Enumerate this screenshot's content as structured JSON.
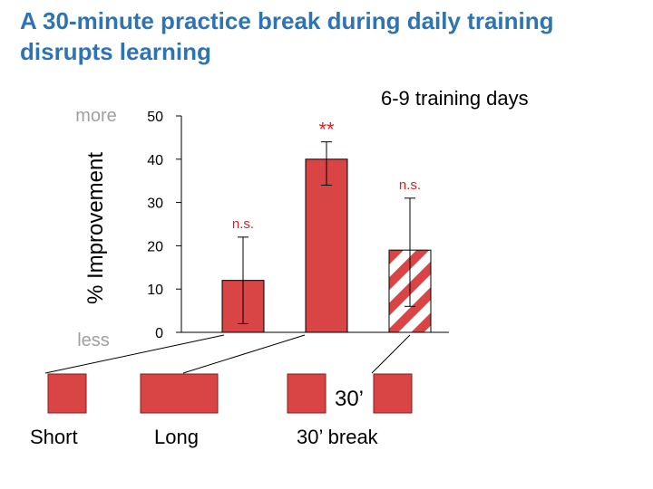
{
  "slide": {
    "title": "A 30-minute practice break during daily training disrupts learning",
    "subtitle": "6-9 training days"
  },
  "chart_data": {
    "type": "bar",
    "ylabel": "% Improvement",
    "y_scale_top": "more",
    "y_scale_bottom": "less",
    "ylim": [
      0,
      50
    ],
    "yticks": [
      0,
      10,
      20,
      30,
      40,
      50
    ],
    "bars": [
      {
        "condition": "Short",
        "value": 12,
        "err_low": 2,
        "err_high": 22,
        "significance": "n.s.",
        "pattern": "solid"
      },
      {
        "condition": "Long",
        "value": 40,
        "err_low": 34,
        "err_high": 44,
        "significance": "**",
        "pattern": "solid"
      },
      {
        "condition": "30’ break",
        "value": 19,
        "err_low": 6,
        "err_high": 31,
        "significance": "n.s.",
        "pattern": "striped"
      }
    ],
    "bar_color": "#d94545",
    "sig_color": "#e02020"
  },
  "schedule": {
    "break_label": "30’",
    "conditions": [
      "Short",
      "Long",
      "30’ break"
    ]
  }
}
